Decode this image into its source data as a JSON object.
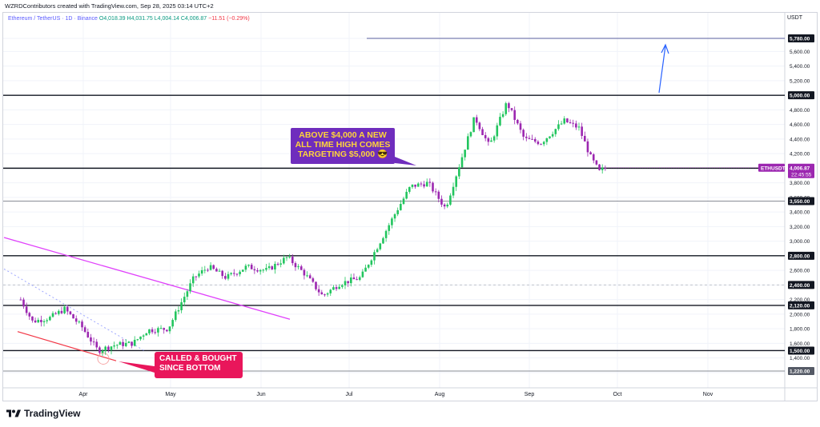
{
  "header": {
    "attribution": "WZRDContributors created with TradingView.com, Sep 28, 2025 03:14 UTC+2"
  },
  "legend": {
    "symbol": "Ethereum / TetherUS · 1D · Binance",
    "ohlc": "O4,018.39  H4,031.75  L4,004.14  C4,006.87",
    "change": "−11.51 (−0.29%)"
  },
  "branding": {
    "logo_text": "TradingView"
  },
  "annotations": {
    "ath_note": "ABOVE $4,000 A NEW ALL TIME HIGH COMES TARGETING $5,000 😎",
    "bottom_note": "CALLED & BOUGHT SINCE BOTTOM"
  },
  "colors": {
    "bull": "#22c55e",
    "bear": "#9c27b0",
    "level_line": "#131722",
    "trendline": "#e040fb",
    "support_line": "#f23645",
    "target_arrow": "#2962ff",
    "price_badge": "#9c27b0"
  },
  "chart_data": {
    "type": "candlestick",
    "title": "Ethereum / TetherUS · 1D · Binance",
    "ylabel": "USDT",
    "ylim": [
      1100,
      6000
    ],
    "x_ticks": [
      "Apr",
      "May",
      "Jun",
      "Jul",
      "Aug",
      "Sep",
      "Oct",
      "Nov"
    ],
    "y_ticks": [
      "5,780.00",
      "5,600.00",
      "5,400.00",
      "5,200.00",
      "5,000.00",
      "4,800.00",
      "4,600.00",
      "4,400.00",
      "4,200.00",
      "4,000.00",
      "3,800.00",
      "3,600.00",
      "3,400.00",
      "3,200.00",
      "3,000.00",
      "2,800.00",
      "2,600.00",
      "2,400.00",
      "2,200.00",
      "2,000.00",
      "1,800.00",
      "1,600.00",
      "1,400.00",
      "1,200.00"
    ],
    "horizontal_levels": [
      {
        "value": 5780,
        "label": "5,780.00"
      },
      {
        "value": 5000,
        "label": "5,000.00"
      },
      {
        "value": 4000,
        "label": "4,000.00"
      },
      {
        "value": 3550,
        "label": "3,550.00"
      },
      {
        "value": 2800,
        "label": "2,800.00"
      },
      {
        "value": 2400,
        "label": "2,400.00"
      },
      {
        "value": 2120,
        "label": "2,120.00"
      },
      {
        "value": 1500,
        "label": "1,500.00"
      },
      {
        "value": 1220,
        "label": "1,220.00"
      }
    ],
    "last_price": {
      "symbol": "ETHUSDT",
      "value": "4,006.87",
      "countdown": "22:45:55"
    },
    "price_path": [
      [
        "Mar 10",
        2200
      ],
      [
        "Mar 14",
        1900
      ],
      [
        "Mar 20",
        1950
      ],
      [
        "Mar 25",
        2070
      ],
      [
        "Mar 31",
        1820
      ],
      [
        "Apr 6",
        1500
      ],
      [
        "Apr 12",
        1580
      ],
      [
        "Apr 18",
        1600
      ],
      [
        "Apr 23",
        1780
      ],
      [
        "Apr 30",
        1800
      ],
      [
        "May 9",
        2500
      ],
      [
        "May 14",
        2650
      ],
      [
        "May 20",
        2500
      ],
      [
        "May 27",
        2650
      ],
      [
        "Jun 3",
        2600
      ],
      [
        "Jun 10",
        2780
      ],
      [
        "Jun 16",
        2550
      ],
      [
        "Jun 22",
        2250
      ],
      [
        "Jun 28",
        2420
      ],
      [
        "Jul 5",
        2500
      ],
      [
        "Jul 11",
        2950
      ],
      [
        "Jul 17",
        3400
      ],
      [
        "Jul 22",
        3750
      ],
      [
        "Jul 28",
        3800
      ],
      [
        "Aug 3",
        3450
      ],
      [
        "Aug 9",
        4200
      ],
      [
        "Aug 13",
        4700
      ],
      [
        "Aug 18",
        4300
      ],
      [
        "Aug 24",
        4900
      ],
      [
        "Aug 30",
        4400
      ],
      [
        "Sep 5",
        4350
      ],
      [
        "Sep 13",
        4650
      ],
      [
        "Sep 18",
        4550
      ],
      [
        "Sep 22",
        4150
      ],
      [
        "Sep 25",
        3950
      ],
      [
        "Sep 27",
        4007
      ]
    ]
  }
}
